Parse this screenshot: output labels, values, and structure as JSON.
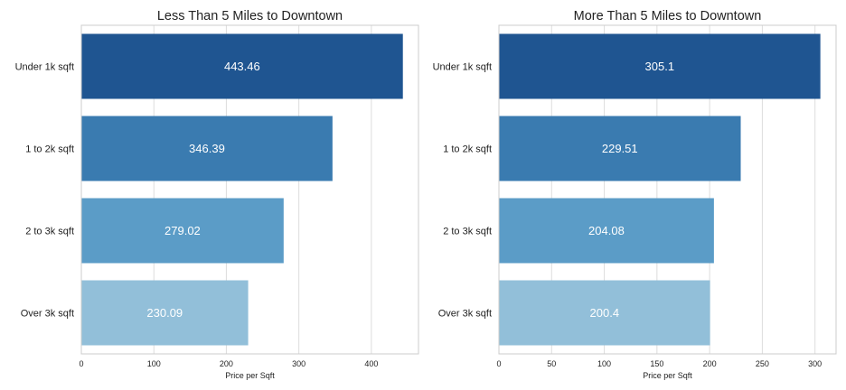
{
  "chart_data": [
    {
      "type": "bar",
      "orientation": "horizontal",
      "title": "Less Than 5 Miles to Downtown",
      "categories": [
        "Under 1k sqft",
        "1 to 2k sqft",
        "2 to 3k sqft",
        "Over 3k sqft"
      ],
      "values": [
        443.46,
        346.39,
        279.02,
        230.09
      ],
      "data_labels": [
        "443.46",
        "346.39",
        "279.02",
        "230.09"
      ],
      "xlabel": "Price per Sqft",
      "ylabel": "",
      "xlim": [
        0,
        465
      ],
      "xticks": [
        0,
        100,
        200,
        300,
        400
      ],
      "xtick_labels": [
        "0",
        "100",
        "200",
        "300",
        "400"
      ],
      "grid": true,
      "colors": [
        "#1f5591",
        "#3a7bb0",
        "#5b9cc7",
        "#92bfd9"
      ]
    },
    {
      "type": "bar",
      "orientation": "horizontal",
      "title": "More Than 5 Miles to Downtown",
      "categories": [
        "Under 1k sqft",
        "1 to 2k sqft",
        "2 to 3k sqft",
        "Over 3k sqft"
      ],
      "values": [
        305.1,
        229.51,
        204.08,
        200.4
      ],
      "data_labels": [
        "305.1",
        "229.51",
        "204.08",
        "200.4"
      ],
      "xlabel": "Price per Sqft",
      "ylabel": "",
      "xlim": [
        0,
        320
      ],
      "xticks": [
        0,
        50,
        100,
        150,
        200,
        250,
        300
      ],
      "xtick_labels": [
        "0",
        "50",
        "100",
        "150",
        "200",
        "250",
        "300"
      ],
      "grid": true,
      "colors": [
        "#1f5591",
        "#3a7bb0",
        "#5b9cc7",
        "#92bfd9"
      ]
    }
  ]
}
